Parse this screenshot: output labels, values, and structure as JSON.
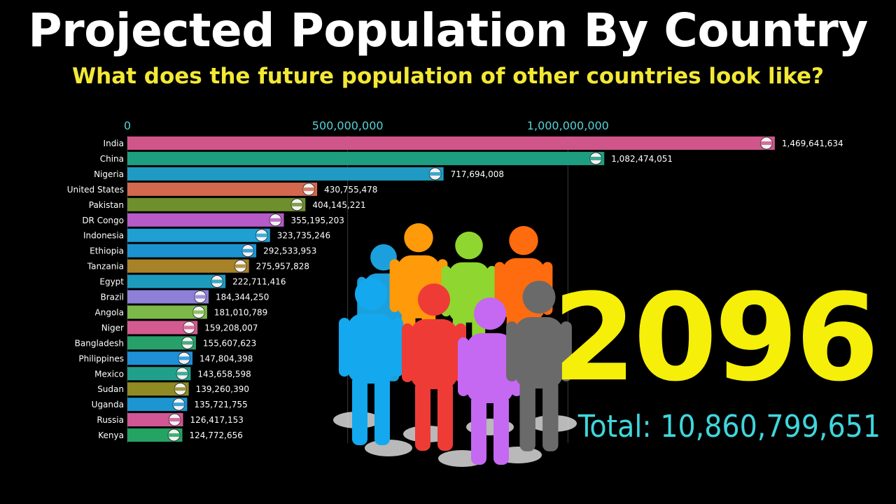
{
  "header": {
    "title": "Projected Population By Country",
    "subtitle": "What does the future population of other countries look like?"
  },
  "year": "2096",
  "total_label": "Total: 10,860,799,651",
  "colors": {
    "background": "#000000",
    "title": "#ffffff",
    "subtitle": "#f2e836",
    "year": "#f5ef0a",
    "total": "#3fd6dc",
    "axis_ticks": "#54d2d8"
  },
  "illustration": {
    "name": "group-of-people-icon",
    "figure_colors": [
      "#1ba0dd",
      "#ff9a0a",
      "#8fd631",
      "#ff6b0f",
      "#14a8ee",
      "#ef3b36",
      "#c568f2",
      "#6a6a6a"
    ]
  },
  "chart_data": {
    "type": "bar",
    "orientation": "horizontal",
    "xlim": [
      0,
      1500000000
    ],
    "ticks": [
      {
        "value": 0,
        "label": "0"
      },
      {
        "value": 500000000,
        "label": "500,000,000"
      },
      {
        "value": 1000000000,
        "label": "1,000,000,000"
      }
    ],
    "grid": true,
    "bars": [
      {
        "category": "India",
        "value": 1469641634,
        "label": "1,469,641,634",
        "color": "#d0568a",
        "flag": "india-flag-icon"
      },
      {
        "category": "China",
        "value": 1082474051,
        "label": "1,082,474,051",
        "color": "#1e9e81",
        "flag": "china-flag-icon"
      },
      {
        "category": "Nigeria",
        "value": 717694008,
        "label": "717,694,008",
        "color": "#1f9bc3",
        "flag": "nigeria-flag-icon"
      },
      {
        "category": "United States",
        "value": 430755478,
        "label": "430,755,478",
        "color": "#d3684e",
        "flag": "usa-flag-icon"
      },
      {
        "category": "Pakistan",
        "value": 404145221,
        "label": "404,145,221",
        "color": "#6f8f2c",
        "flag": "pakistan-flag-icon"
      },
      {
        "category": "DR Congo",
        "value": 355195203,
        "label": "355,195,203",
        "color": "#b65ac7",
        "flag": "dr-congo-flag-icon"
      },
      {
        "category": "Indonesia",
        "value": 323735246,
        "label": "323,735,246",
        "color": "#1f9fd2",
        "flag": "indonesia-flag-icon"
      },
      {
        "category": "Ethiopia",
        "value": 292533953,
        "label": "292,533,953",
        "color": "#1b93d1",
        "flag": "ethiopia-flag-icon"
      },
      {
        "category": "Tanzania",
        "value": 275957828,
        "label": "275,957,828",
        "color": "#a88228",
        "flag": "tanzania-flag-icon"
      },
      {
        "category": "Egypt",
        "value": 222711416,
        "label": "222,711,416",
        "color": "#1d9bbd",
        "flag": "egypt-flag-icon"
      },
      {
        "category": "Brazil",
        "value": 184344250,
        "label": "184,344,250",
        "color": "#8e7fd9",
        "flag": "brazil-flag-icon"
      },
      {
        "category": "Angola",
        "value": 181010789,
        "label": "181,010,789",
        "color": "#7cb84a",
        "flag": "angola-flag-icon"
      },
      {
        "category": "Niger",
        "value": 159208007,
        "label": "159,208,007",
        "color": "#d35b8f",
        "flag": "niger-flag-icon"
      },
      {
        "category": "Bangladesh",
        "value": 155607623,
        "label": "155,607,623",
        "color": "#27a06a",
        "flag": "bangladesh-flag-icon"
      },
      {
        "category": "Philippines",
        "value": 147804398,
        "label": "147,804,398",
        "color": "#1f8fd6",
        "flag": "philippines-flag-icon"
      },
      {
        "category": "Mexico",
        "value": 143658598,
        "label": "143,658,598",
        "color": "#20a08a",
        "flag": "mexico-flag-icon"
      },
      {
        "category": "Sudan",
        "value": 139260390,
        "label": "139,260,390",
        "color": "#8f8a24",
        "flag": "sudan-flag-icon"
      },
      {
        "category": "Uganda",
        "value": 135721755,
        "label": "135,721,755",
        "color": "#1d95d0",
        "flag": "uganda-flag-icon"
      },
      {
        "category": "Russia",
        "value": 126417153,
        "label": "126,417,153",
        "color": "#d05694",
        "flag": "russia-flag-icon"
      },
      {
        "category": "Kenya",
        "value": 124772656,
        "label": "124,772,656",
        "color": "#25a363",
        "flag": "kenya-flag-icon"
      }
    ]
  }
}
